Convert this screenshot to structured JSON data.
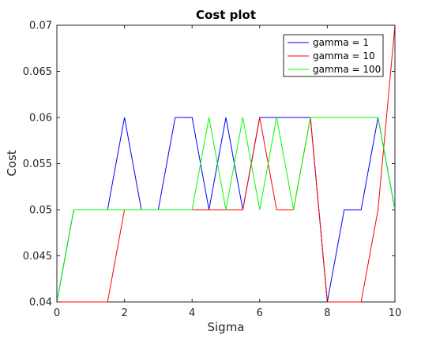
{
  "chart_data": {
    "type": "line",
    "title": "Cost plot",
    "xlabel": "Sigma",
    "ylabel": "Cost",
    "xlim": [
      0,
      10
    ],
    "ylim": [
      0.04,
      0.07
    ],
    "xticks": [
      0,
      2,
      4,
      6,
      8,
      10
    ],
    "xtick_labels": [
      "0",
      "2",
      "4",
      "6",
      "8",
      "10"
    ],
    "yticks": [
      0.04,
      0.045,
      0.05,
      0.055,
      0.06,
      0.065,
      0.07
    ],
    "ytick_labels": [
      "0.04",
      "0.045",
      "0.05",
      "0.055",
      "0.06",
      "0.065",
      "0.07"
    ],
    "grid": false,
    "legend_position": "top-right",
    "x": [
      0,
      0.5,
      1,
      1.5,
      2,
      2.5,
      3,
      3.5,
      4,
      4.5,
      5,
      5.5,
      6,
      6.5,
      7,
      7.5,
      8,
      8.5,
      9,
      9.5,
      10
    ],
    "series": [
      {
        "name": "gamma = 1",
        "color": "#0000ff",
        "values": [
          0.04,
          0.05,
          0.05,
          0.05,
          0.06,
          0.05,
          0.05,
          0.06,
          0.06,
          0.05,
          0.06,
          0.05,
          0.06,
          0.06,
          0.06,
          0.06,
          0.04,
          0.05,
          0.05,
          0.06,
          0.05
        ]
      },
      {
        "name": "gamma = 10",
        "color": "#ff0000",
        "values": [
          0.04,
          0.04,
          0.04,
          0.04,
          0.05,
          0.05,
          0.05,
          0.05,
          0.05,
          0.05,
          0.05,
          0.05,
          0.06,
          0.05,
          0.05,
          0.06,
          0.04,
          0.04,
          0.04,
          0.05,
          0.07
        ]
      },
      {
        "name": "gamma = 100",
        "color": "#00ff00",
        "values": [
          0.04,
          0.05,
          0.05,
          0.05,
          0.05,
          0.05,
          0.05,
          0.05,
          0.05,
          0.06,
          0.05,
          0.06,
          0.05,
          0.06,
          0.05,
          0.06,
          0.06,
          0.06,
          0.06,
          0.06,
          0.05
        ]
      }
    ]
  }
}
